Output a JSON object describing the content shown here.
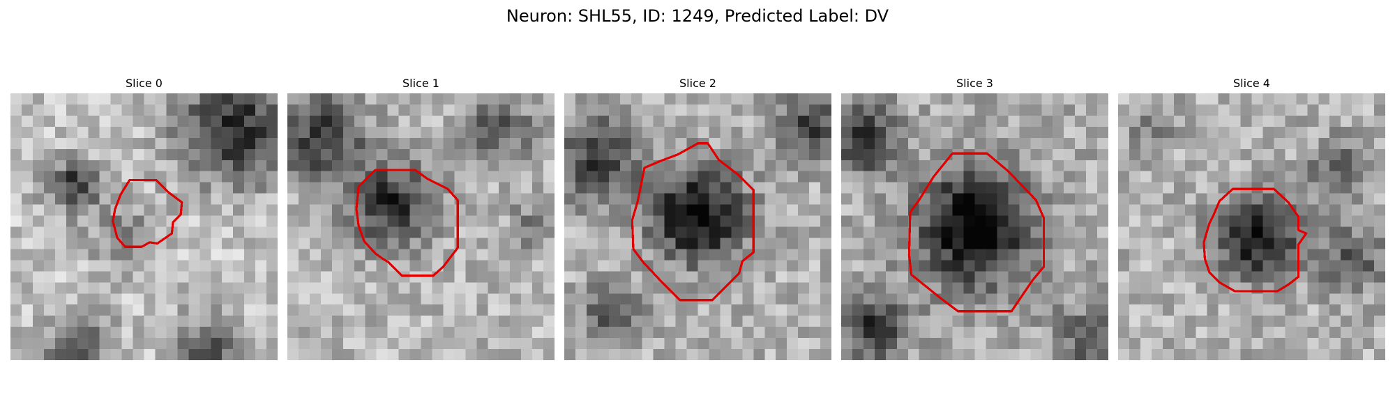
{
  "figure": {
    "title": "Neuron: SHL55, ID: 1249, Predicted Label: DV"
  },
  "colors": {
    "roi_outline": "#e00000",
    "background": "#ffffff"
  },
  "panels": [
    {
      "title": "Slice 0"
    },
    {
      "title": "Slice 1"
    },
    {
      "title": "Slice 2"
    },
    {
      "title": "Slice 3"
    },
    {
      "title": "Slice 4"
    }
  ]
}
